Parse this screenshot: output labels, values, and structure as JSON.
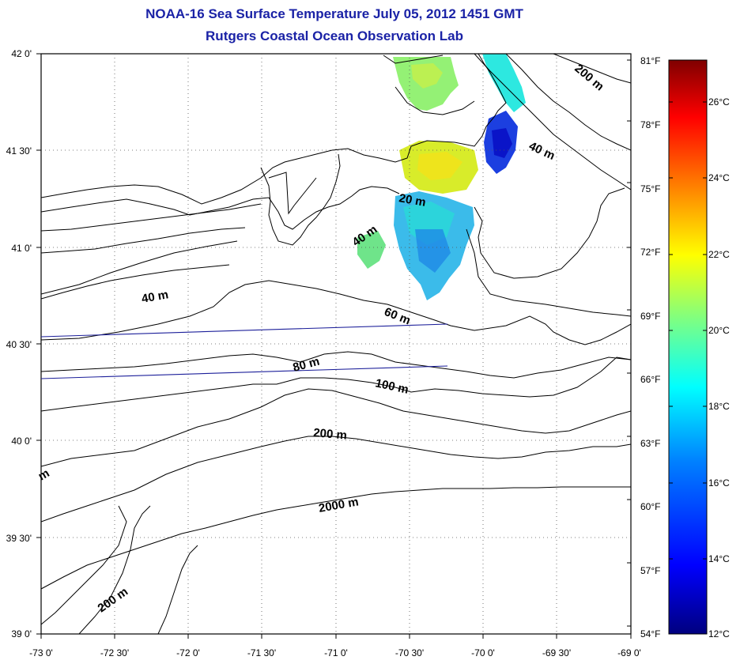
{
  "title": "NOAA-16 Sea Surface Temperature July 05, 2012 1451 GMT",
  "subtitle": "Rutgers Coastal Ocean Observation Lab",
  "longitude_labels": [
    "-73 0'",
    "-72 30'",
    "-72 0'",
    "-71 30'",
    "-71 0'",
    "-70 30'",
    "-70 0'",
    "-69 30'",
    "-69 0'"
  ],
  "latitude_labels": [
    "42 0'",
    "41 30'",
    "41 0'",
    "40 30'",
    "40 0'",
    "39 30'",
    "39 0'"
  ],
  "contour_labels": [
    {
      "text": "200 m"
    },
    {
      "text": "40 m"
    },
    {
      "text": "20 m"
    },
    {
      "text": "40 m"
    },
    {
      "text": "40 m"
    },
    {
      "text": "60 m"
    },
    {
      "text": "80 m"
    },
    {
      "text": "100 m"
    },
    {
      "text": "200 m"
    },
    {
      "text": "2000 m"
    },
    {
      "text": "200 m"
    },
    {
      "text": "m"
    }
  ],
  "colorbar": {
    "fahrenheit_labels": [
      "81°F",
      "78°F",
      "75°F",
      "72°F",
      "69°F",
      "66°F",
      "63°F",
      "60°F",
      "57°F",
      "54°F"
    ],
    "celsius_labels": [
      "26°C",
      "24°C",
      "22°C",
      "20°C",
      "18°C",
      "16°C",
      "14°C",
      "12°C"
    ],
    "colors": [
      "#00007f",
      "#0000ff",
      "#007fff",
      "#00ffff",
      "#7fff7f",
      "#ffff00",
      "#ff7f00",
      "#ff0000",
      "#7f0000"
    ]
  }
}
